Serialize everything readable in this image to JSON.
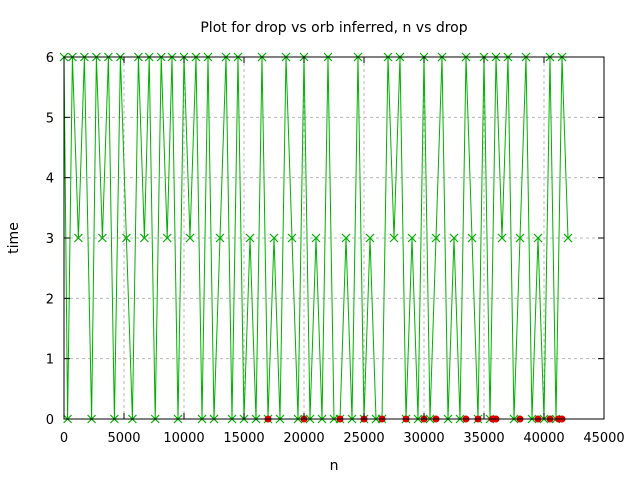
{
  "chart_data": {
    "type": "line",
    "title": "Plot for drop vs orb inferred, n vs drop",
    "xlabel": "n",
    "ylabel": "time",
    "xlim": [
      0,
      45000
    ],
    "ylim": [
      0,
      6
    ],
    "xticks": [
      0,
      5000,
      10000,
      15000,
      20000,
      25000,
      30000,
      35000,
      40000,
      45000
    ],
    "yticks": [
      0,
      1,
      2,
      3,
      4,
      5,
      6
    ],
    "grid": true,
    "legend": "none",
    "series": [
      {
        "color": "#00b000",
        "marker": "x",
        "style": "linespoints",
        "x": [
          0,
          300,
          700,
          1200,
          1700,
          2300,
          2700,
          3200,
          3700,
          4200,
          4700,
          5200,
          5700,
          6200,
          6700,
          7100,
          7600,
          8100,
          8600,
          9000,
          9500,
          10000,
          10500,
          11000,
          11500,
          12000,
          12500,
          13000,
          13500,
          14000,
          14500,
          15000,
          15500,
          16000,
          16500,
          17000,
          17500,
          18000,
          18500,
          19000,
          19500,
          20000,
          20500,
          21000,
          21500,
          22000,
          22500,
          23000,
          23500,
          24000,
          24500,
          25000,
          25500,
          26000,
          26500,
          27000,
          27500,
          28000,
          28500,
          29000,
          29500,
          30000,
          30500,
          31000,
          31500,
          32000,
          32500,
          33000,
          33500,
          34000,
          34500,
          35000,
          35500,
          36000,
          36500,
          37000,
          37500,
          38000,
          38500,
          39000,
          39500,
          40000,
          40500,
          41000,
          41500,
          42000
        ],
        "y": [
          6,
          0,
          6,
          3,
          6,
          0,
          6,
          3,
          6,
          0,
          6,
          3,
          0,
          6,
          3,
          6,
          0,
          6,
          3,
          6,
          0,
          6,
          3,
          6,
          0,
          6,
          0,
          3,
          6,
          0,
          6,
          0,
          3,
          0,
          6,
          0,
          3,
          0,
          6,
          3,
          0,
          6,
          0,
          3,
          0,
          6,
          0,
          0,
          3,
          0,
          6,
          0,
          3,
          0,
          0,
          6,
          3,
          6,
          0,
          3,
          0,
          6,
          0,
          3,
          6,
          0,
          3,
          0,
          6,
          3,
          0,
          6,
          0,
          6,
          3,
          6,
          0,
          3,
          6,
          0,
          3,
          0,
          6,
          0,
          6,
          3
        ]
      },
      {
        "color": "#dd0000",
        "marker": "circle",
        "style": "points",
        "x": [
          17000,
          20000,
          23000,
          25000,
          26500,
          28500,
          30000,
          31000,
          33500,
          34500,
          35700,
          36000,
          38000,
          39500,
          40500,
          41200,
          41500
        ],
        "y": [
          0,
          0,
          0,
          0,
          0,
          0,
          0,
          0,
          0,
          0,
          0,
          0,
          0,
          0,
          0,
          0,
          0
        ]
      }
    ]
  }
}
